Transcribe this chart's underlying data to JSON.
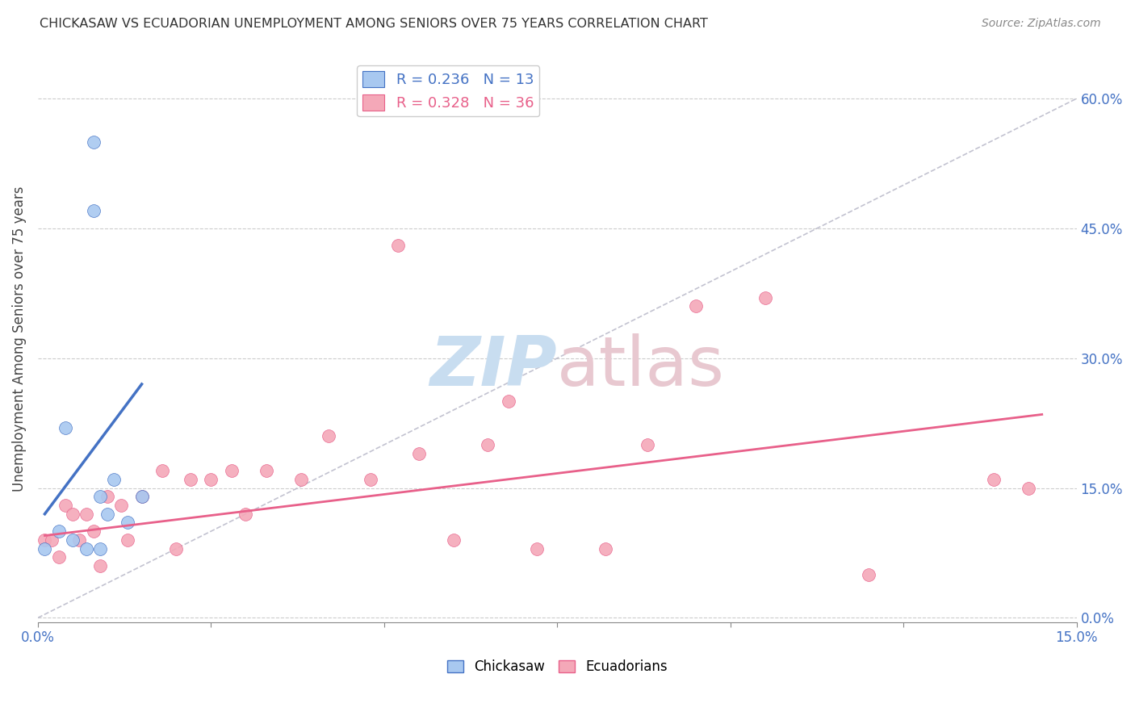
{
  "title": "CHICKASAW VS ECUADORIAN UNEMPLOYMENT AMONG SENIORS OVER 75 YEARS CORRELATION CHART",
  "source": "Source: ZipAtlas.com",
  "ylabel": "Unemployment Among Seniors over 75 years",
  "xlim": [
    0.0,
    0.15
  ],
  "ylim": [
    -0.005,
    0.65
  ],
  "yticks_right": [
    0.0,
    0.15,
    0.3,
    0.45,
    0.6
  ],
  "ytick_labels_right": [
    "0.0%",
    "15.0%",
    "30.0%",
    "45.0%",
    "60.0%"
  ],
  "grid_color": "#cccccc",
  "background_color": "#ffffff",
  "chickasaw_color": "#a8c8f0",
  "ecuadorian_color": "#f4a8b8",
  "trend_chickasaw_color": "#4472c4",
  "trend_ecuadorian_color": "#e8608a",
  "diagonal_color": "#b8b8c8",
  "chickasaw_x": [
    0.001,
    0.003,
    0.004,
    0.005,
    0.007,
    0.008,
    0.008,
    0.009,
    0.009,
    0.01,
    0.011,
    0.013,
    0.015
  ],
  "chickasaw_y": [
    0.08,
    0.1,
    0.22,
    0.09,
    0.08,
    0.55,
    0.47,
    0.08,
    0.14,
    0.12,
    0.16,
    0.11,
    0.14
  ],
  "chickasaw_trend_x": [
    0.001,
    0.015
  ],
  "chickasaw_trend_y": [
    0.12,
    0.27
  ],
  "ecuadorian_x": [
    0.001,
    0.002,
    0.003,
    0.004,
    0.005,
    0.006,
    0.007,
    0.008,
    0.009,
    0.01,
    0.012,
    0.013,
    0.015,
    0.018,
    0.02,
    0.022,
    0.025,
    0.028,
    0.03,
    0.033,
    0.038,
    0.042,
    0.048,
    0.052,
    0.055,
    0.06,
    0.065,
    0.068,
    0.072,
    0.082,
    0.088,
    0.095,
    0.105,
    0.12,
    0.138,
    0.143
  ],
  "ecuadorian_y": [
    0.09,
    0.09,
    0.07,
    0.13,
    0.12,
    0.09,
    0.12,
    0.1,
    0.06,
    0.14,
    0.13,
    0.09,
    0.14,
    0.17,
    0.08,
    0.16,
    0.16,
    0.17,
    0.12,
    0.17,
    0.16,
    0.21,
    0.16,
    0.43,
    0.19,
    0.09,
    0.2,
    0.25,
    0.08,
    0.08,
    0.2,
    0.36,
    0.37,
    0.05,
    0.16,
    0.15
  ],
  "ecuadorian_trend_x": [
    0.001,
    0.145
  ],
  "ecuadorian_trend_y": [
    0.095,
    0.235
  ],
  "marker_size": 130,
  "watermark_zip_color": "#c8ddf0",
  "watermark_atlas_color": "#e8c8d0"
}
